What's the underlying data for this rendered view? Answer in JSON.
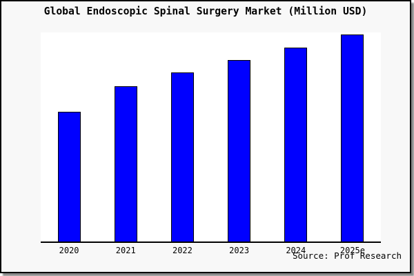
{
  "title": "Global Endoscopic Spinal Surgery Market (Million USD)",
  "source_note": "Source: Prof Research",
  "colors": {
    "bar_fill": "#0000ff",
    "bar_border": "#000000",
    "frame_background": "#f8f8f8",
    "plot_background": "#ffffff",
    "frame_border": "#000000",
    "shadow": "#8a8a8a"
  },
  "chart_data": {
    "type": "bar",
    "title": "Global Endoscopic Spinal Surgery Market (Million USD)",
    "categories": [
      "2020",
      "2021",
      "2022",
      "2023",
      "2024",
      "2025e"
    ],
    "values": [
      62.0,
      74.3,
      80.9,
      86.8,
      92.7,
      99.0
    ],
    "values_note": "y-axis has no tick labels or gridlines; values are bar heights estimated as percent of plot height",
    "xlabel": "",
    "ylabel": "",
    "ylim": [
      0,
      100
    ],
    "grid": false,
    "legend": false,
    "bar_color": "#0000ff",
    "source": "Source: Prof Research"
  }
}
